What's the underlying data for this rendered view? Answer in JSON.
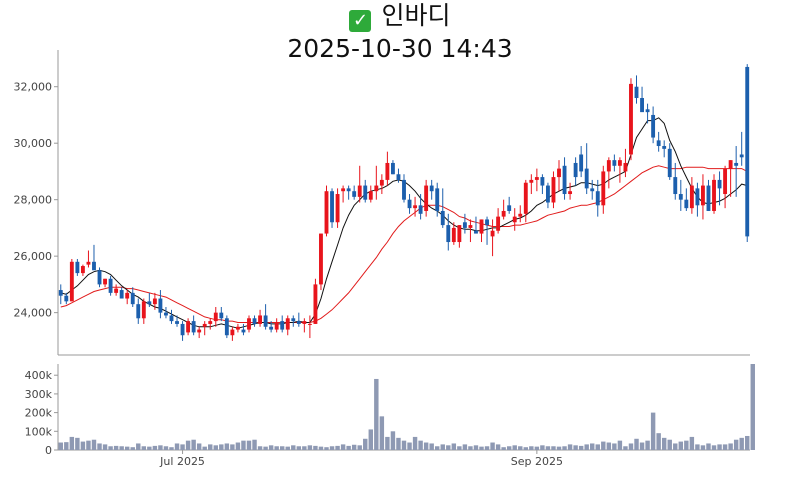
{
  "title": {
    "icon": "check-mark-icon",
    "name": "인바디",
    "datetime": "2025-10-30 14:43"
  },
  "colors": {
    "up": "#e8141c",
    "down": "#1c5fad",
    "ma_short": "#111111",
    "ma_long": "#e11b1b",
    "volume": "#8e99b3",
    "axis": "#999999"
  },
  "chart_data": [
    {
      "type": "candlestick",
      "ylim": [
        22500,
        33300
      ],
      "yticks": [
        24000,
        26000,
        28000,
        30000,
        32000
      ],
      "ytick_labels": [
        "24,000",
        "26,000",
        "28,000",
        "30,000",
        "32,000"
      ],
      "xticks": [
        {
          "index": 22,
          "label": "Jul 2025"
        },
        {
          "index": 86,
          "label": "Sep 2025"
        }
      ],
      "candles": [
        [
          24800,
          25000,
          24300,
          24600
        ],
        [
          24600,
          24700,
          24300,
          24400
        ],
        [
          24400,
          25900,
          24400,
          25800
        ],
        [
          25800,
          25900,
          25300,
          25400
        ],
        [
          25400,
          25700,
          25300,
          25650
        ],
        [
          25700,
          26200,
          25600,
          25800
        ],
        [
          25800,
          26400,
          25600,
          25500
        ],
        [
          25500,
          25600,
          24900,
          25000
        ],
        [
          25000,
          25200,
          24900,
          25200
        ],
        [
          25200,
          25300,
          24600,
          24700
        ],
        [
          24700,
          25000,
          24600,
          24850
        ],
        [
          24800,
          24900,
          24500,
          24500
        ],
        [
          24500,
          24800,
          24300,
          24700
        ],
        [
          24700,
          24900,
          24200,
          24300
        ],
        [
          24300,
          24500,
          23600,
          23800
        ],
        [
          23800,
          24500,
          23600,
          24400
        ],
        [
          24400,
          24700,
          24200,
          24300
        ],
        [
          24300,
          24700,
          24100,
          24500
        ],
        [
          24500,
          24800,
          23800,
          24000
        ],
        [
          24000,
          24200,
          23800,
          23900
        ],
        [
          23900,
          24100,
          23600,
          23700
        ],
        [
          23700,
          23900,
          23500,
          23600
        ],
        [
          23600,
          23700,
          23000,
          23200
        ],
        [
          23300,
          23800,
          23200,
          23700
        ],
        [
          23700,
          23900,
          23200,
          23300
        ],
        [
          23300,
          23500,
          23100,
          23400
        ],
        [
          23500,
          23700,
          23200,
          23600
        ],
        [
          23600,
          23800,
          23400,
          23700
        ],
        [
          23700,
          24200,
          23500,
          24000
        ],
        [
          24000,
          24200,
          23700,
          23800
        ],
        [
          23800,
          23900,
          23100,
          23200
        ],
        [
          23200,
          23500,
          23000,
          23400
        ],
        [
          23400,
          23600,
          23300,
          23500
        ],
        [
          23400,
          23600,
          23200,
          23300
        ],
        [
          23400,
          23900,
          23300,
          23800
        ],
        [
          23800,
          23900,
          23500,
          23600
        ],
        [
          23600,
          24100,
          23500,
          23900
        ],
        [
          23900,
          24300,
          23400,
          23500
        ],
        [
          23500,
          23700,
          23300,
          23400
        ],
        [
          23400,
          23800,
          23300,
          23650
        ],
        [
          23700,
          23900,
          23300,
          23400
        ],
        [
          23400,
          23900,
          23200,
          23800
        ],
        [
          23800,
          23900,
          23500,
          23700
        ],
        [
          23700,
          24000,
          23500,
          23600
        ],
        [
          23600,
          23800,
          23300,
          23700
        ],
        [
          23600,
          23900,
          23100,
          23600
        ],
        [
          23600,
          25200,
          23600,
          25000
        ],
        [
          25000,
          26800,
          24800,
          26800
        ],
        [
          26800,
          28500,
          26700,
          28300
        ],
        [
          28300,
          28400,
          27000,
          27200
        ],
        [
          27200,
          28400,
          27000,
          28200
        ],
        [
          28300,
          28500,
          27900,
          28400
        ],
        [
          28400,
          28500,
          28000,
          28300
        ],
        [
          28300,
          28500,
          28000,
          28100
        ],
        [
          28100,
          29200,
          27900,
          28500
        ],
        [
          28500,
          28700,
          27900,
          28000
        ],
        [
          28000,
          28500,
          27900,
          28300
        ],
        [
          28300,
          29200,
          28000,
          28500
        ],
        [
          28500,
          28900,
          28200,
          28700
        ],
        [
          28700,
          29700,
          28500,
          29300
        ],
        [
          29300,
          29400,
          28900,
          28900
        ],
        [
          28900,
          29100,
          28600,
          28700
        ],
        [
          28700,
          28900,
          27900,
          28000
        ],
        [
          28000,
          28200,
          27500,
          27700
        ],
        [
          27700,
          28100,
          27400,
          27800
        ],
        [
          27800,
          28200,
          27300,
          27500
        ],
        [
          27600,
          28700,
          27400,
          28500
        ],
        [
          28500,
          28700,
          28000,
          28300
        ],
        [
          28400,
          28600,
          27400,
          27600
        ],
        [
          27600,
          28400,
          27000,
          27100
        ],
        [
          27100,
          27500,
          26200,
          26500
        ],
        [
          26500,
          27200,
          26400,
          27000
        ],
        [
          26500,
          27100,
          26300,
          27100
        ],
        [
          27200,
          27500,
          26800,
          27000
        ],
        [
          27000,
          27300,
          26500,
          27100
        ],
        [
          26900,
          27400,
          26800,
          26800
        ],
        [
          26800,
          27300,
          26500,
          27300
        ],
        [
          27300,
          27400,
          26400,
          27100
        ],
        [
          26700,
          27300,
          26000,
          26900
        ],
        [
          26900,
          27700,
          26800,
          27400
        ],
        [
          27400,
          28000,
          27300,
          27600
        ],
        [
          27800,
          28100,
          27500,
          27600
        ],
        [
          27200,
          27700,
          26900,
          27400
        ],
        [
          27400,
          27800,
          27200,
          27500
        ],
        [
          27500,
          28700,
          27200,
          28600
        ],
        [
          28600,
          28900,
          28200,
          28700
        ],
        [
          28700,
          29100,
          28300,
          28800
        ],
        [
          28800,
          28900,
          28200,
          28500
        ],
        [
          28500,
          28600,
          27700,
          27900
        ],
        [
          27900,
          29000,
          27700,
          28800
        ],
        [
          28800,
          29400,
          28300,
          29100
        ],
        [
          29200,
          29500,
          28000,
          28200
        ],
        [
          28200,
          28600,
          28000,
          28300
        ],
        [
          29300,
          29500,
          28500,
          28800
        ],
        [
          29600,
          29900,
          28800,
          29000
        ],
        [
          29100,
          30000,
          28200,
          28400
        ],
        [
          28400,
          28700,
          28000,
          28300
        ],
        [
          28300,
          28700,
          27400,
          27800
        ],
        [
          27800,
          29200,
          27500,
          29000
        ],
        [
          29000,
          29500,
          28400,
          29400
        ],
        [
          29400,
          29600,
          29000,
          29200
        ],
        [
          29200,
          29500,
          28600,
          29400
        ],
        [
          29000,
          29800,
          28800,
          29300
        ],
        [
          29600,
          32300,
          29400,
          32100
        ],
        [
          32000,
          32400,
          31400,
          31600
        ],
        [
          31600,
          32000,
          31200,
          31100
        ],
        [
          31200,
          31400,
          30700,
          31100
        ],
        [
          31000,
          31300,
          30000,
          30200
        ],
        [
          30100,
          30400,
          29700,
          29900
        ],
        [
          29900,
          30100,
          29500,
          29800
        ],
        [
          29800,
          30000,
          28700,
          28800
        ],
        [
          28800,
          29300,
          28000,
          28200
        ],
        [
          28200,
          28700,
          27600,
          28000
        ],
        [
          28000,
          28400,
          27600,
          27700
        ],
        [
          27700,
          28800,
          27500,
          28500
        ],
        [
          28400,
          28600,
          27400,
          27800
        ],
        [
          27800,
          28900,
          27300,
          28500
        ],
        [
          28500,
          28700,
          27600,
          27600
        ],
        [
          27600,
          28900,
          27500,
          28700
        ],
        [
          28700,
          29000,
          27800,
          28400
        ],
        [
          28200,
          29200,
          27700,
          29100
        ],
        [
          29100,
          29400,
          28100,
          29400
        ],
        [
          29300,
          29900,
          28100,
          29200
        ],
        [
          29600,
          30400,
          29200,
          29500
        ],
        [
          32700,
          32800,
          26500,
          26700
        ]
      ],
      "ma_short": [
        24700,
        24650,
        24800,
        24950,
        25150,
        25350,
        25450,
        25500,
        25450,
        25350,
        25150,
        24950,
        24800,
        24650,
        24550,
        24400,
        24300,
        24200,
        24150,
        24050,
        23950,
        23850,
        23750,
        23650,
        23550,
        23500,
        23500,
        23500,
        23550,
        23600,
        23550,
        23500,
        23450,
        23500,
        23550,
        23600,
        23650,
        23650,
        23600,
        23600,
        23600,
        23650,
        23650,
        23700,
        23650,
        23650,
        23950,
        24500,
        25200,
        25800,
        26400,
        27000,
        27450,
        27800,
        28000,
        28200,
        28300,
        28350,
        28400,
        28500,
        28650,
        28700,
        28650,
        28500,
        28300,
        28050,
        27850,
        27700,
        27600,
        27450,
        27250,
        27100,
        27000,
        26950,
        26950,
        26900,
        26900,
        26950,
        27000,
        27000,
        27100,
        27200,
        27300,
        27350,
        27450,
        27600,
        27800,
        27900,
        28050,
        28200,
        28300,
        28400,
        28450,
        28500,
        28600,
        28600,
        28550,
        28500,
        28550,
        28700,
        28800,
        28900,
        29000,
        29600,
        30200,
        30500,
        30800,
        30800,
        30900,
        30700,
        30100,
        29700,
        29200,
        28800,
        28400,
        28100,
        27900,
        27850,
        27900,
        27950,
        28050,
        28200,
        28350,
        28550,
        28500
      ],
      "ma_long": [
        24200,
        24250,
        24350,
        24450,
        24550,
        24650,
        24750,
        24800,
        24850,
        24900,
        24900,
        24900,
        24850,
        24850,
        24800,
        24750,
        24700,
        24650,
        24600,
        24550,
        24450,
        24350,
        24250,
        24150,
        24050,
        23950,
        23850,
        23800,
        23750,
        23750,
        23700,
        23700,
        23650,
        23650,
        23650,
        23650,
        23650,
        23650,
        23650,
        23650,
        23650,
        23650,
        23650,
        23650,
        23650,
        23650,
        23700,
        23800,
        23950,
        24100,
        24300,
        24500,
        24700,
        24950,
        25200,
        25450,
        25700,
        25950,
        26250,
        26500,
        26800,
        27050,
        27250,
        27400,
        27550,
        27700,
        27800,
        27800,
        27800,
        27750,
        27650,
        27550,
        27400,
        27350,
        27250,
        27200,
        27150,
        27100,
        27050,
        27050,
        27050,
        27050,
        27100,
        27100,
        27150,
        27200,
        27250,
        27350,
        27450,
        27500,
        27550,
        27600,
        27700,
        27750,
        27800,
        27800,
        27850,
        27900,
        28000,
        28100,
        28200,
        28350,
        28500,
        28650,
        28800,
        28950,
        29050,
        29150,
        29200,
        29150,
        29100,
        29100,
        29100,
        29150,
        29150,
        29150,
        29150,
        29100,
        29100,
        29100,
        29100,
        29100,
        29100,
        29100,
        29000
      ]
    },
    {
      "type": "bar",
      "ylim": [
        0,
        460000
      ],
      "yticks": [
        0,
        100000,
        200000,
        300000,
        400000
      ],
      "ytick_labels": [
        "0",
        "100k",
        "200k",
        "300k",
        "400k"
      ],
      "values": [
        40000,
        42000,
        70000,
        65000,
        45000,
        50000,
        55000,
        35000,
        30000,
        20000,
        22000,
        20000,
        18000,
        15000,
        35000,
        20000,
        18000,
        22000,
        25000,
        20000,
        15000,
        35000,
        30000,
        50000,
        55000,
        35000,
        18000,
        30000,
        25000,
        30000,
        35000,
        30000,
        40000,
        50000,
        50000,
        55000,
        20000,
        18000,
        25000,
        20000,
        20000,
        18000,
        25000,
        20000,
        20000,
        25000,
        22000,
        18000,
        15000,
        20000,
        22000,
        30000,
        22000,
        28000,
        25000,
        60000,
        110000,
        380000,
        180000,
        70000,
        100000,
        65000,
        50000,
        40000,
        70000,
        50000,
        40000,
        35000,
        20000,
        30000,
        25000,
        35000,
        20000,
        30000,
        20000,
        25000,
        18000,
        20000,
        40000,
        30000,
        15000,
        20000,
        25000,
        20000,
        15000,
        20000,
        18000,
        25000,
        20000,
        20000,
        18000,
        20000,
        30000,
        25000,
        22000,
        30000,
        35000,
        30000,
        45000,
        40000,
        35000,
        50000,
        20000,
        35000,
        60000,
        40000,
        50000,
        200000,
        90000,
        65000,
        55000,
        35000,
        45000,
        50000,
        70000,
        30000,
        25000,
        35000,
        25000,
        30000,
        30000,
        35000,
        55000,
        65000,
        75000,
        460000
      ]
    }
  ]
}
